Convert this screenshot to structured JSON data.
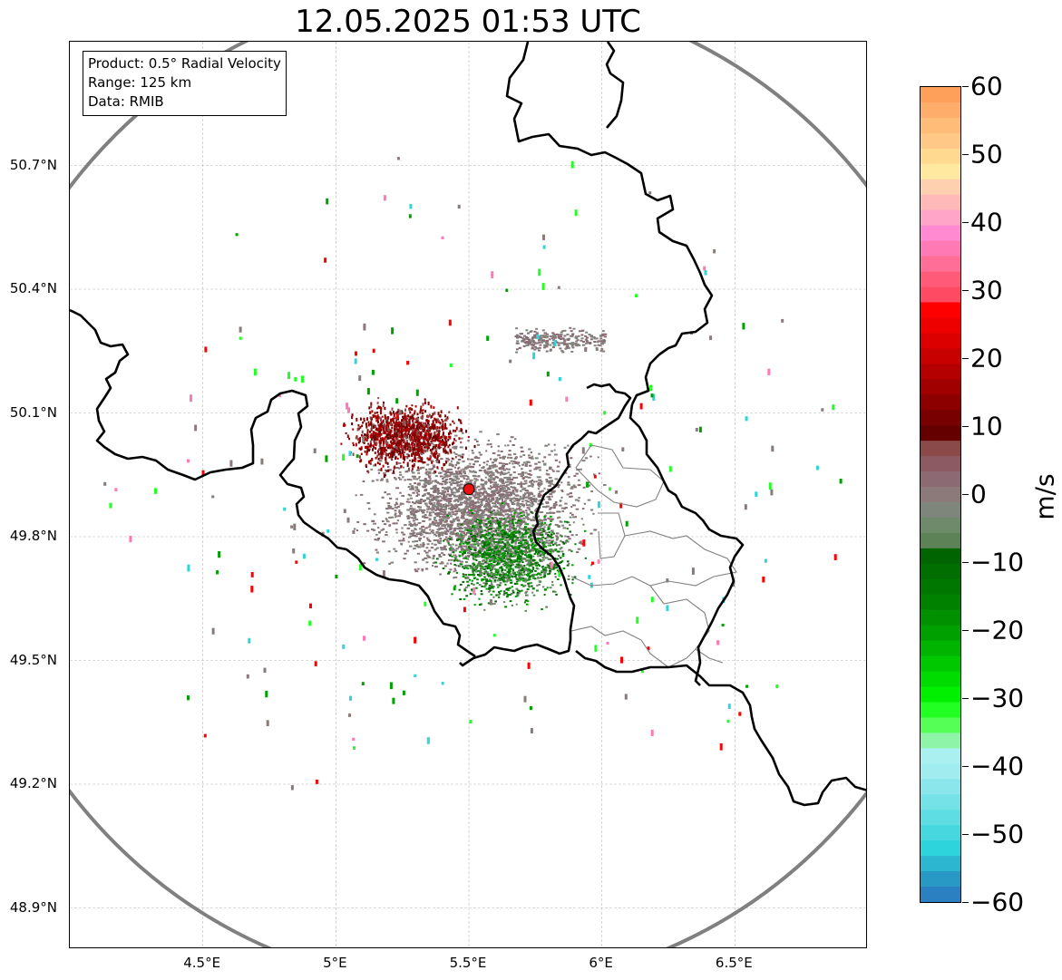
{
  "title": "12.05.2025 01:53 UTC",
  "info_box": {
    "product": "Product: 0.5° Radial Velocity",
    "range": "Range: 125 km",
    "source": "Data: RMIB"
  },
  "map": {
    "lon_range": [
      4.0,
      7.0
    ],
    "lat_range": [
      48.8,
      51.0
    ],
    "radar_site": {
      "lon": 5.5,
      "lat": 49.915,
      "color": "#e81010"
    },
    "range_ring_color": "#808080",
    "gridlines": true,
    "x_ticks": [
      {
        "value": 4.5,
        "label": "4.5°E"
      },
      {
        "value": 5.0,
        "label": "5°E"
      },
      {
        "value": 5.5,
        "label": "5.5°E"
      },
      {
        "value": 6.0,
        "label": "6°E"
      },
      {
        "value": 6.5,
        "label": "6.5°E"
      }
    ],
    "y_ticks": [
      {
        "value": 50.7,
        "label": "50.7°N"
      },
      {
        "value": 50.4,
        "label": "50.4°N"
      },
      {
        "value": 50.1,
        "label": "50.1°N"
      },
      {
        "value": 49.8,
        "label": "49.8°N"
      },
      {
        "value": 49.5,
        "label": "49.5°N"
      },
      {
        "value": 49.2,
        "label": "49.2°N"
      },
      {
        "value": 48.9,
        "label": "48.9°N"
      }
    ]
  },
  "colorbar": {
    "unit": "m/s",
    "range": [
      -60,
      60
    ],
    "ticks": [
      {
        "value": 60,
        "label": "60"
      },
      {
        "value": 50,
        "label": "50"
      },
      {
        "value": 40,
        "label": "40"
      },
      {
        "value": 30,
        "label": "30"
      },
      {
        "value": 20,
        "label": "20"
      },
      {
        "value": 10,
        "label": "10"
      },
      {
        "value": 0,
        "label": "0"
      },
      {
        "value": -10,
        "label": "−10"
      },
      {
        "value": -20,
        "label": "−20"
      },
      {
        "value": -30,
        "label": "−30"
      },
      {
        "value": -40,
        "label": "−40"
      },
      {
        "value": -50,
        "label": "−50"
      },
      {
        "value": -60,
        "label": "−60"
      }
    ],
    "colors_top_to_bottom": [
      "#ffa05a",
      "#ffad6a",
      "#ffbc78",
      "#ffc886",
      "#ffd98f",
      "#ffe8a0",
      "#ffd0b0",
      "#ffb9b9",
      "#ffa5c8",
      "#ff8ad2",
      "#ff7ab4",
      "#ff6e96",
      "#ff5a78",
      "#ff4a64",
      "#ff0000",
      "#ee0000",
      "#dd0000",
      "#c80000",
      "#b40000",
      "#a00000",
      "#8c0000",
      "#780000",
      "#640000",
      "#8a4a4a",
      "#8c5a62",
      "#8c6a74",
      "#8c7a7a",
      "#7e857a",
      "#6e8a6a",
      "#5e8258",
      "#006400",
      "#006e00",
      "#007800",
      "#008200",
      "#009000",
      "#00a000",
      "#00b400",
      "#00c800",
      "#00dc00",
      "#00f000",
      "#22ff22",
      "#55ff55",
      "#8ef5a8",
      "#aaf0f0",
      "#a0ecee",
      "#8ae6ea",
      "#74e2e6",
      "#5edde2",
      "#46d8de",
      "#2ed4dc",
      "#2cb6d0",
      "#2898c4",
      "#2a80c0"
    ]
  }
}
